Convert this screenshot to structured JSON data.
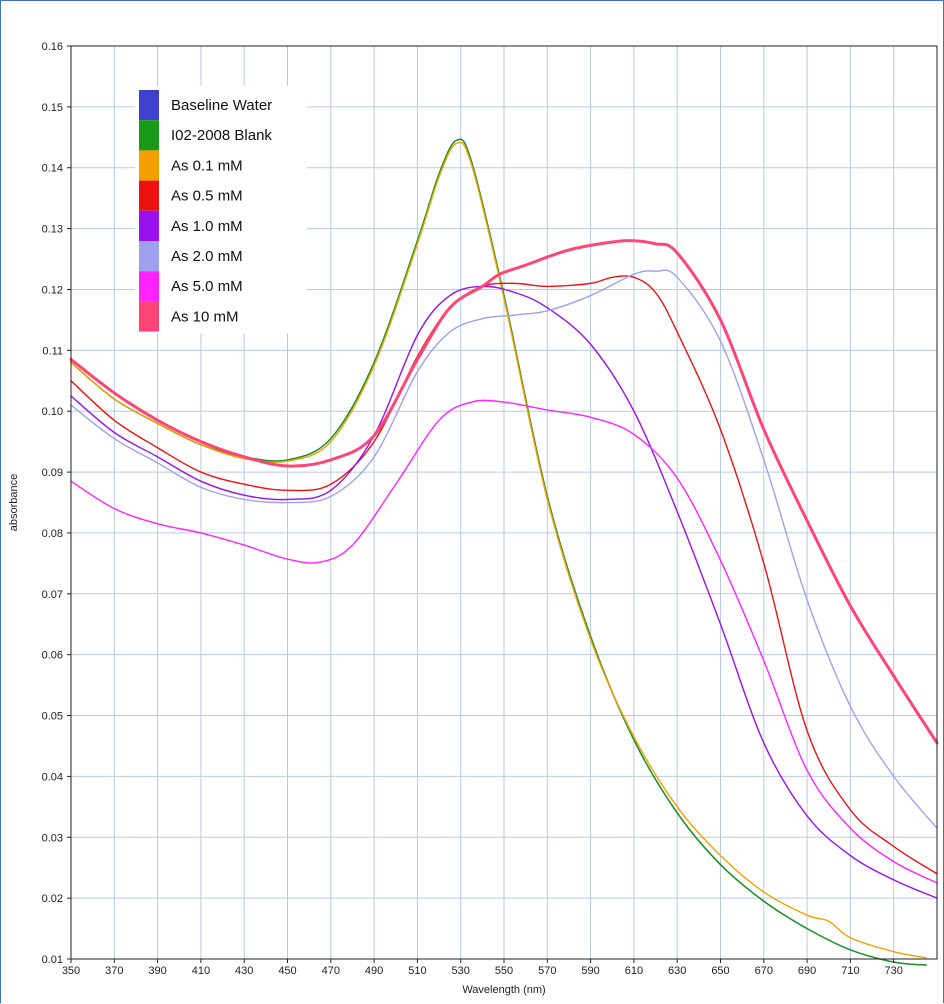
{
  "chart_data": {
    "type": "line",
    "title": "",
    "xlabel": "Wavelength (nm)",
    "ylabel": "absorbance",
    "xlim": [
      350,
      750
    ],
    "ylim": [
      0.01,
      0.16
    ],
    "x_ticks": [
      350,
      370,
      390,
      410,
      430,
      450,
      470,
      490,
      510,
      530,
      550,
      570,
      590,
      610,
      630,
      650,
      670,
      690,
      710,
      730
    ],
    "y_ticks": [
      0.01,
      0.02,
      0.03,
      0.04,
      0.05,
      0.06,
      0.07,
      0.08,
      0.09,
      0.1,
      0.11,
      0.12,
      0.13,
      0.14,
      0.15,
      0.16
    ],
    "y_tick_labels": [
      "0.01",
      "0.02",
      "0.03",
      "0.04",
      "0.05",
      "0.06",
      "0.07",
      "0.08",
      "0.09",
      "0.10",
      "0.11",
      "0.12",
      "0.13",
      "0.14",
      "0.15",
      "0.16"
    ],
    "grid": true,
    "legend_position": "top-left",
    "series": [
      {
        "name": "Baseline Water",
        "color": "#4040d0",
        "x": [
          350,
          370,
          390,
          410,
          430,
          450,
          470,
          490,
          510,
          520,
          528,
          535,
          550,
          570,
          590,
          610,
          630,
          650,
          670,
          690,
          710,
          730,
          745
        ],
        "y": [
          0.108,
          0.102,
          0.098,
          0.0945,
          0.0925,
          0.092,
          0.0955,
          0.108,
          0.128,
          0.139,
          0.1445,
          0.141,
          0.119,
          0.086,
          0.063,
          0.046,
          0.034,
          0.0255,
          0.0195,
          0.015,
          0.0115,
          0.0095,
          0.009
        ]
      },
      {
        "name": "I02-2008 Blank",
        "color": "#1a9a1a",
        "x": [
          350,
          370,
          390,
          410,
          430,
          450,
          470,
          490,
          510,
          520,
          528,
          535,
          550,
          570,
          590,
          610,
          630,
          650,
          670,
          690,
          710,
          730,
          745
        ],
        "y": [
          0.108,
          0.102,
          0.098,
          0.0945,
          0.0925,
          0.092,
          0.0955,
          0.108,
          0.128,
          0.139,
          0.1445,
          0.141,
          0.119,
          0.086,
          0.063,
          0.046,
          0.034,
          0.0255,
          0.0195,
          0.015,
          0.0115,
          0.0095,
          0.009
        ]
      },
      {
        "name": "As 0.1 mM",
        "color": "#f5a000",
        "x": [
          350,
          370,
          390,
          410,
          430,
          450,
          470,
          490,
          510,
          520,
          528,
          535,
          550,
          570,
          590,
          610,
          630,
          650,
          670,
          690,
          700,
          710,
          730,
          745
        ],
        "y": [
          0.108,
          0.102,
          0.098,
          0.0945,
          0.0922,
          0.0918,
          0.095,
          0.1075,
          0.1275,
          0.1385,
          0.144,
          0.1405,
          0.1185,
          0.0855,
          0.0625,
          0.0465,
          0.035,
          0.027,
          0.021,
          0.0172,
          0.0162,
          0.0135,
          0.0112,
          0.0102
        ]
      },
      {
        "name": "As 0.5 mM",
        "color": "#ee1111",
        "x": [
          350,
          370,
          390,
          410,
          430,
          450,
          470,
          490,
          510,
          525,
          540,
          555,
          570,
          590,
          600,
          610,
          620,
          630,
          650,
          670,
          690,
          710,
          730,
          750
        ],
        "y": [
          0.105,
          0.0985,
          0.094,
          0.09,
          0.088,
          0.087,
          0.088,
          0.095,
          0.109,
          0.117,
          0.1205,
          0.121,
          0.1205,
          0.121,
          0.122,
          0.122,
          0.1195,
          0.113,
          0.097,
          0.075,
          0.0475,
          0.0345,
          0.0285,
          0.024
        ]
      },
      {
        "name": "As 1.0 mM",
        "color": "#9911ee",
        "x": [
          350,
          370,
          390,
          410,
          430,
          450,
          470,
          490,
          510,
          525,
          540,
          555,
          570,
          590,
          610,
          630,
          650,
          670,
          690,
          710,
          730,
          750
        ],
        "y": [
          0.1025,
          0.0965,
          0.0925,
          0.0885,
          0.0862,
          0.0855,
          0.087,
          0.096,
          0.1125,
          0.119,
          0.1205,
          0.1195,
          0.117,
          0.111,
          0.1,
          0.0835,
          0.065,
          0.0455,
          0.0335,
          0.027,
          0.023,
          0.02
        ]
      },
      {
        "name": "As 2.0 mM",
        "color": "#a0a0f0",
        "x": [
          350,
          370,
          390,
          410,
          430,
          450,
          470,
          490,
          510,
          525,
          540,
          555,
          570,
          590,
          610,
          620,
          630,
          650,
          670,
          690,
          710,
          730,
          750
        ],
        "y": [
          0.101,
          0.0955,
          0.0915,
          0.0875,
          0.0855,
          0.085,
          0.086,
          0.0925,
          0.1065,
          0.113,
          0.1152,
          0.1158,
          0.1165,
          0.119,
          0.1225,
          0.123,
          0.122,
          0.1115,
          0.092,
          0.069,
          0.0515,
          0.04,
          0.0315
        ]
      },
      {
        "name": "As 5.0 mM",
        "color": "#ff22ff",
        "x": [
          350,
          370,
          390,
          410,
          430,
          450,
          465,
          480,
          500,
          520,
          535,
          550,
          570,
          590,
          610,
          630,
          650,
          670,
          690,
          710,
          730,
          750
        ],
        "y": [
          0.0885,
          0.084,
          0.0815,
          0.08,
          0.078,
          0.0757,
          0.0752,
          0.078,
          0.088,
          0.0985,
          0.1015,
          0.1015,
          0.1002,
          0.099,
          0.0962,
          0.089,
          0.0755,
          0.059,
          0.041,
          0.0315,
          0.026,
          0.0225
        ]
      },
      {
        "name": "As 10 mM",
        "color": "#ff4477",
        "x": [
          350,
          370,
          390,
          410,
          430,
          450,
          470,
          490,
          510,
          525,
          540,
          548,
          560,
          580,
          600,
          610,
          620,
          630,
          650,
          670,
          690,
          710,
          730,
          750
        ],
        "y": [
          0.1085,
          0.103,
          0.0985,
          0.095,
          0.0925,
          0.091,
          0.092,
          0.096,
          0.1085,
          0.117,
          0.1205,
          0.1225,
          0.124,
          0.1265,
          0.1278,
          0.128,
          0.1275,
          0.126,
          0.115,
          0.097,
          0.082,
          0.068,
          0.0565,
          0.0455
        ]
      }
    ]
  }
}
